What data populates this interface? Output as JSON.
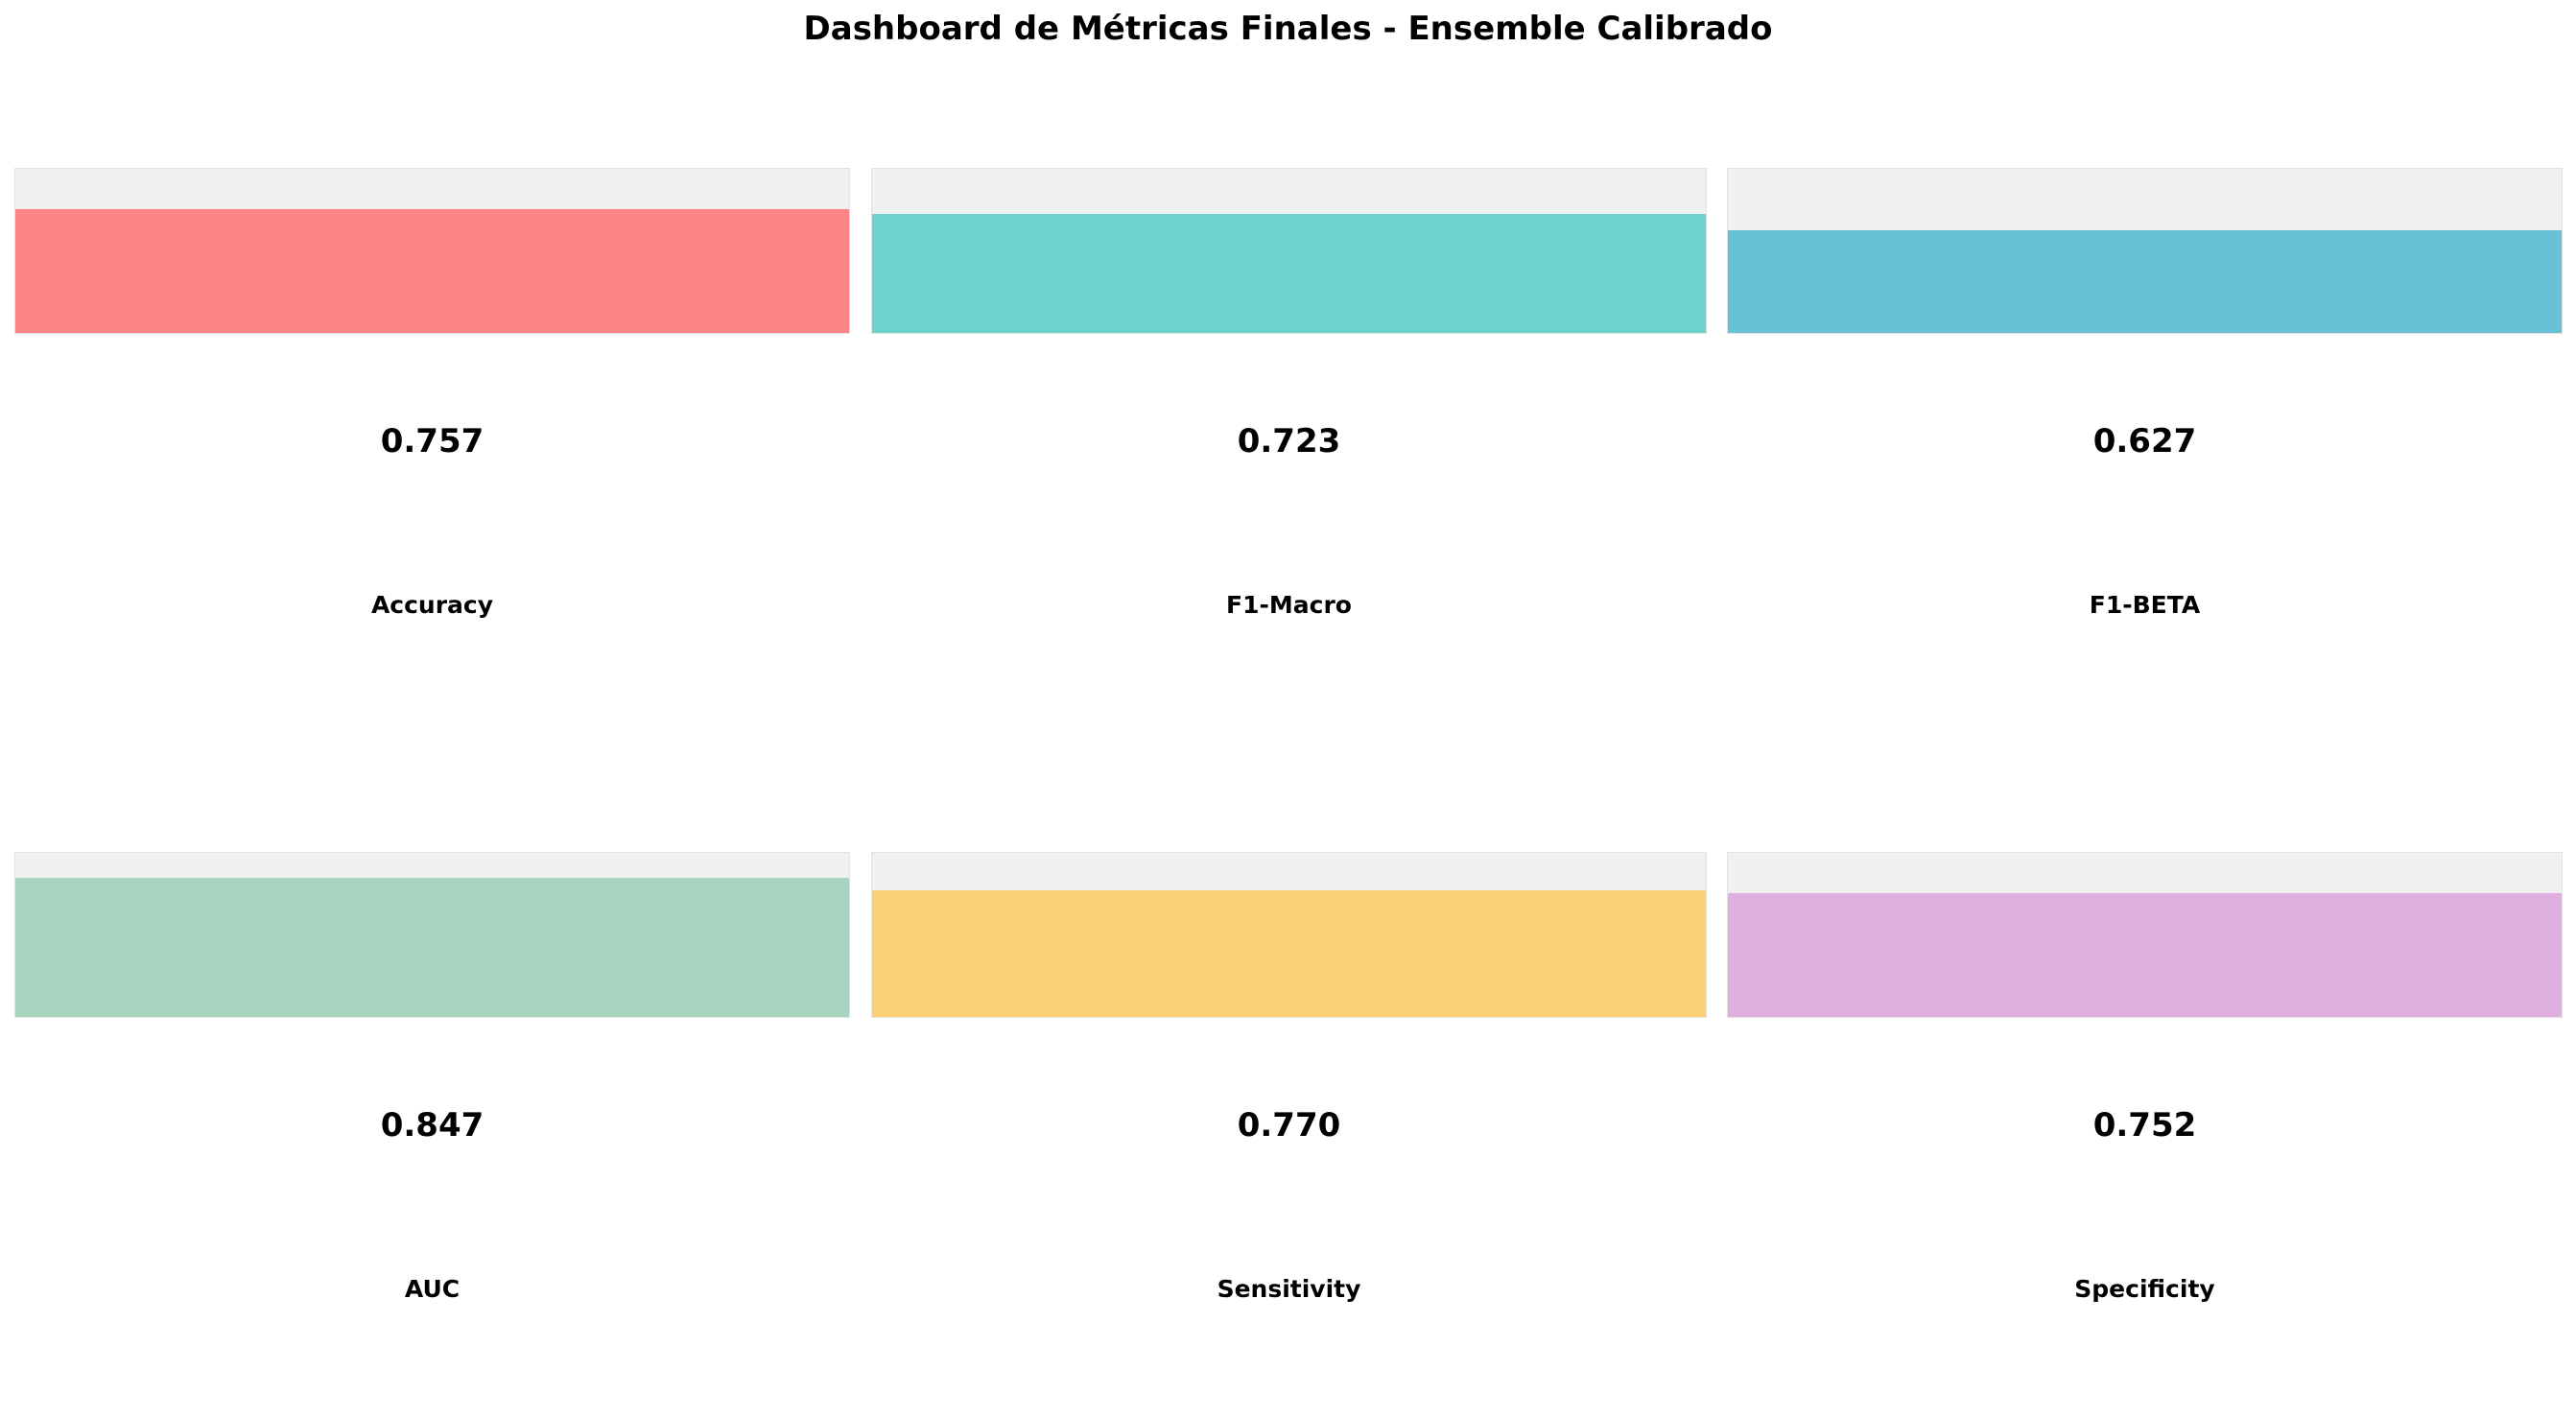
{
  "chart_data": {
    "type": "bar",
    "title": "Dashboard de Métricas Finales - Ensemble Calibrado",
    "ylim": [
      0,
      1
    ],
    "metrics": [
      {
        "name": "Accuracy",
        "value": 0.757,
        "label": "0.757",
        "color": "#ff6b6b"
      },
      {
        "name": "F1-Macro",
        "value": 0.723,
        "label": "0.723",
        "color": "#4ecdc4"
      },
      {
        "name": "F1-BETA",
        "value": 0.627,
        "label": "0.627",
        "color": "#45b7d1"
      },
      {
        "name": "AUC",
        "value": 0.847,
        "label": "0.847",
        "color": "#96ceb4"
      },
      {
        "name": "Sensitivity",
        "value": 0.77,
        "label": "0.770",
        "color": "#feca57"
      },
      {
        "name": "Specificity",
        "value": 0.752,
        "label": "0.752",
        "color": "#dda0dd"
      }
    ]
  }
}
